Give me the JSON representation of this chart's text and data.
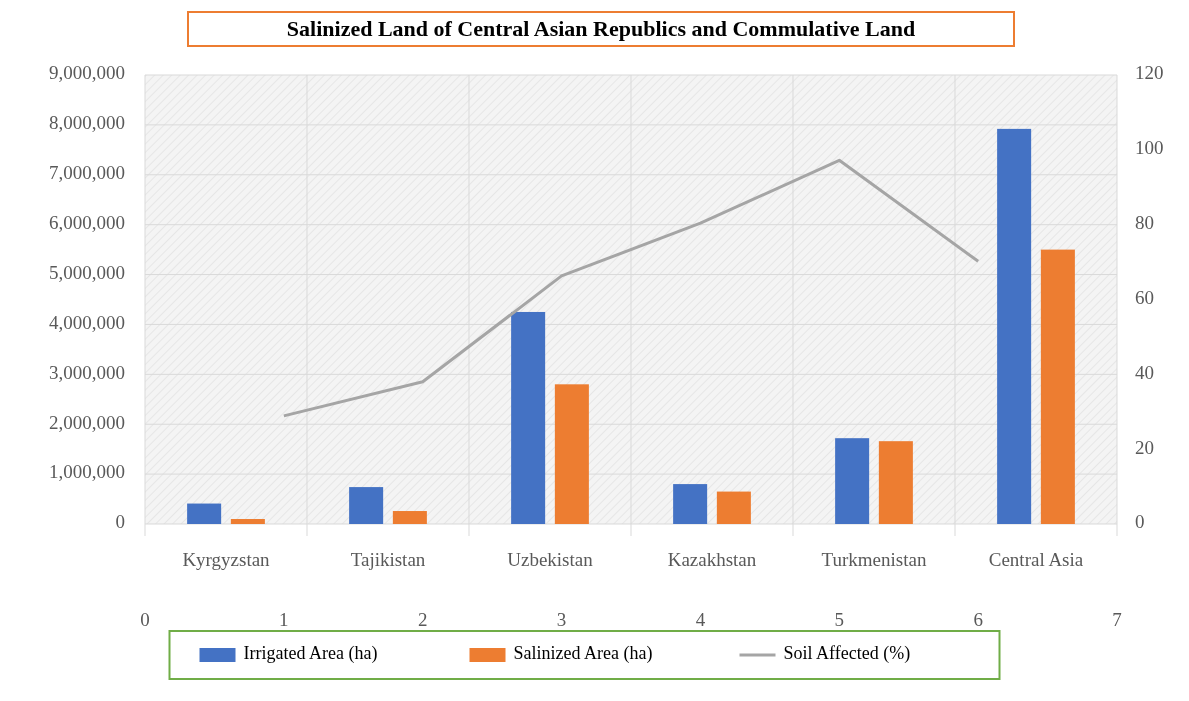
{
  "chart_data": [
    {
      "type": "bar",
      "title": "Salinized Land of Central Asian Republics and Commulative Land",
      "categories": [
        "Kyrgyzstan",
        "Tajikistan",
        "Uzbekistan",
        "Kazakhstan",
        "Turkmenistan",
        "Central Asia"
      ],
      "series": [
        {
          "name": "Irrigated Area (ha)",
          "color": "#4472c4",
          "values": [
            410000,
            740000,
            4250000,
            800000,
            1720000,
            7920000
          ]
        },
        {
          "name": "Salinized Area (ha)",
          "color": "#ed7d31",
          "values": [
            100000,
            260000,
            2800000,
            650000,
            1660000,
            5500000
          ]
        }
      ],
      "ylim": [
        0,
        9000000
      ],
      "yticks": [
        0,
        {
          "value": 1000000,
          "label": "1,000,000"
        },
        {
          "value": 2000000,
          "label": "2,000,000"
        },
        {
          "value": 3000000,
          "label": "3,000,000"
        },
        {
          "value": 4000000,
          "label": "4,000,000"
        },
        {
          "value": 5000000,
          "label": "5,000,000"
        },
        {
          "value": 6000000,
          "label": "6,000,000"
        },
        {
          "value": 7000000,
          "label": "7,000,000"
        },
        {
          "value": 8000000,
          "label": "8,000,000"
        },
        {
          "value": 9000000,
          "label": "9,000,000"
        }
      ],
      "grid": true,
      "legend": "bottom"
    },
    {
      "type": "line",
      "series": [
        {
          "name": "Soil Affected (%)",
          "color": "#a5a5a5",
          "x": [
            1,
            2,
            3,
            4,
            5,
            6
          ],
          "values": [
            28.9,
            38,
            66.3,
            80.4,
            97.2,
            70.2
          ]
        }
      ],
      "xlim": [
        0,
        7
      ],
      "xticks": [
        0,
        1,
        2,
        3,
        4,
        5,
        6,
        7
      ],
      "ylim": [
        0,
        120
      ],
      "yticks": [
        0,
        20,
        40,
        60,
        80,
        100,
        120
      ],
      "legend": "bottom",
      "marker": "none"
    }
  ]
}
